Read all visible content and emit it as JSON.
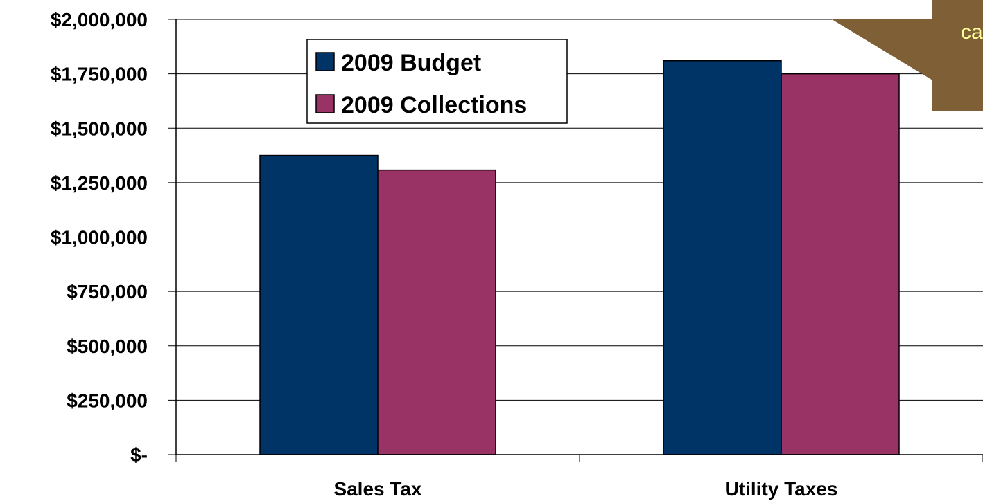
{
  "chart_data": {
    "type": "bar",
    "title": "",
    "xlabel": "",
    "ylabel": "",
    "categories": [
      "Sales Tax",
      "Utility Taxes"
    ],
    "series": [
      {
        "name": "2009 Budget",
        "values": [
          1375000,
          1810000
        ],
        "color": "#003366"
      },
      {
        "name": "2009 Collections",
        "values": [
          1308000,
          1750000
        ],
        "color": "#993366"
      }
    ],
    "ylim": [
      0,
      2000000
    ],
    "yticks": [
      0,
      250000,
      500000,
      750000,
      1000000,
      1250000,
      1500000,
      1750000,
      2000000
    ],
    "ytick_labels": [
      "$-",
      "$250,000",
      "$500,000",
      "$750,000",
      "$1,000,000",
      "$1,250,000",
      "$1,500,000",
      "$1,750,000",
      "$2,000,000"
    ],
    "grid": true,
    "legend_position": "top-left"
  },
  "callout": {
    "text": "ca",
    "fill_color": "#7f5f36",
    "text_color": "#ffff99"
  }
}
